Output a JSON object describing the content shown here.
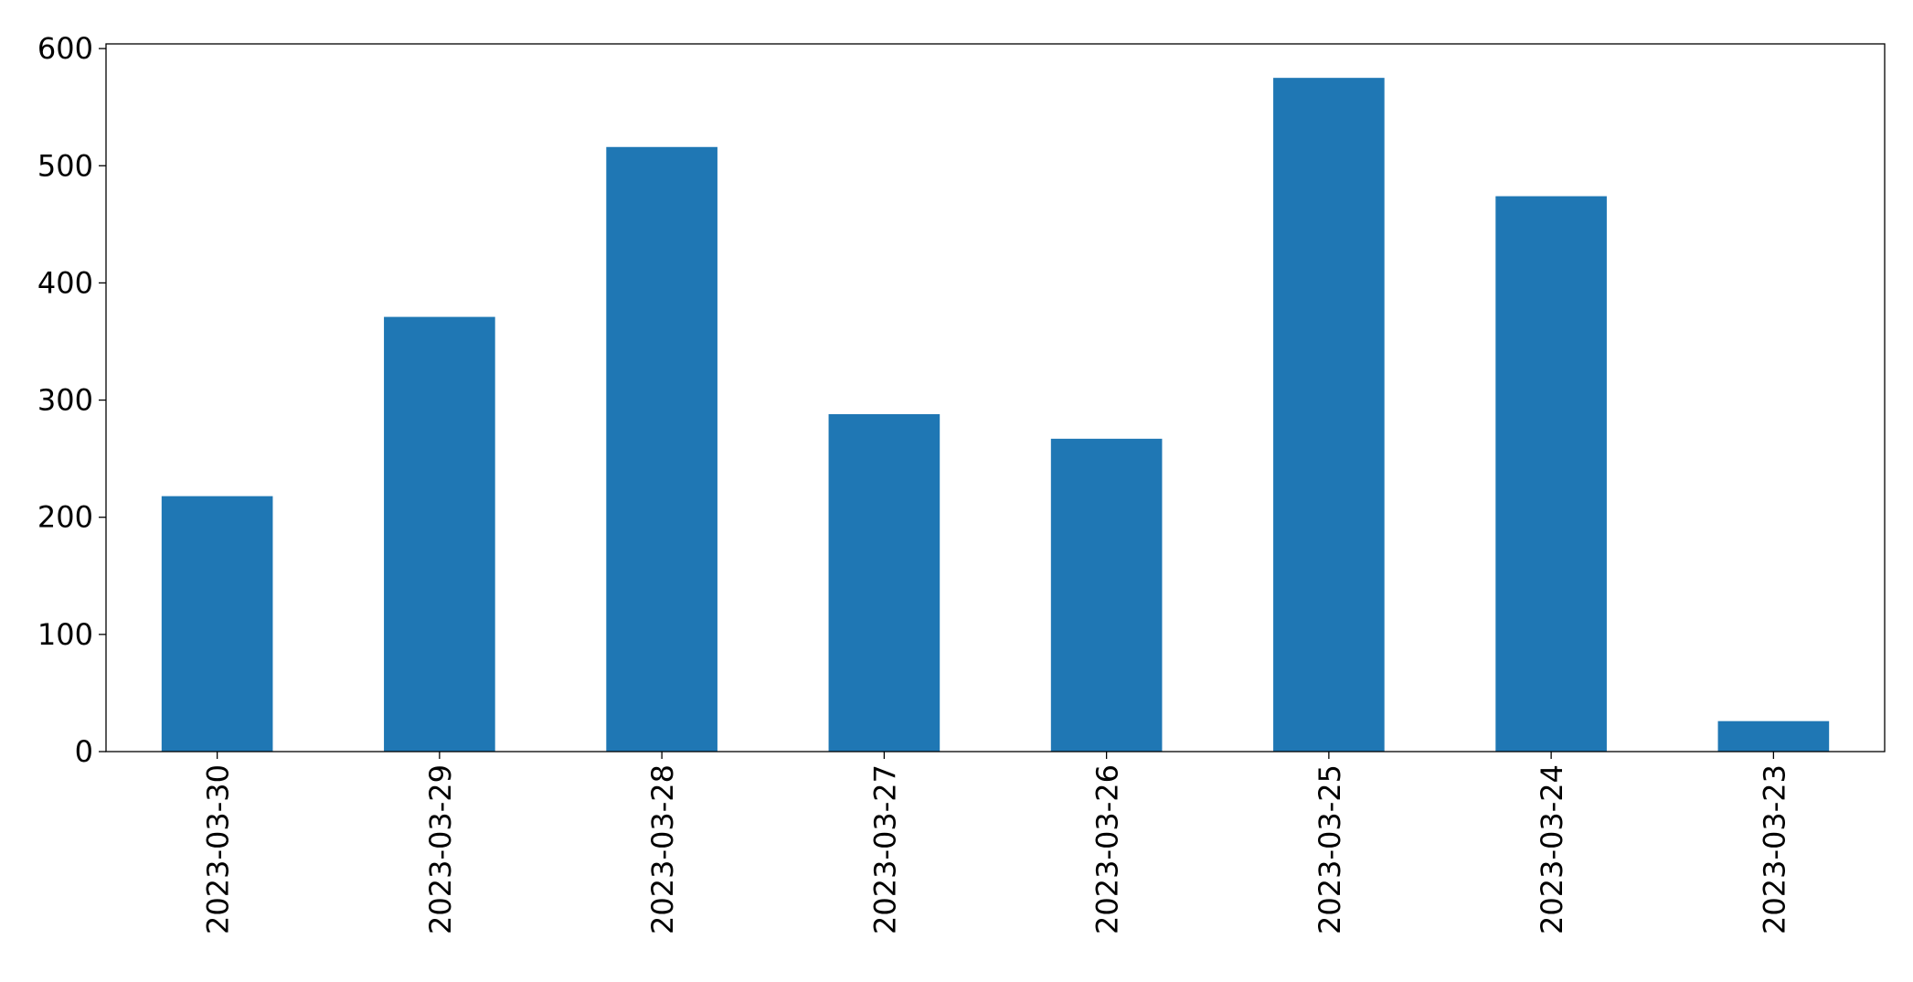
{
  "chart_data": {
    "type": "bar",
    "title": "",
    "xlabel": "",
    "ylabel": "",
    "categories": [
      "2023-03-30",
      "2023-03-29",
      "2023-03-28",
      "2023-03-27",
      "2023-03-26",
      "2023-03-25",
      "2023-03-24",
      "2023-03-23"
    ],
    "values": [
      218,
      371,
      516,
      288,
      267,
      575,
      474,
      26
    ],
    "ylim": [
      0,
      604
    ],
    "yticks": [
      0,
      100,
      200,
      300,
      400,
      500,
      600
    ],
    "grid": false,
    "legend": "none",
    "bar_color": "#1f77b4"
  }
}
